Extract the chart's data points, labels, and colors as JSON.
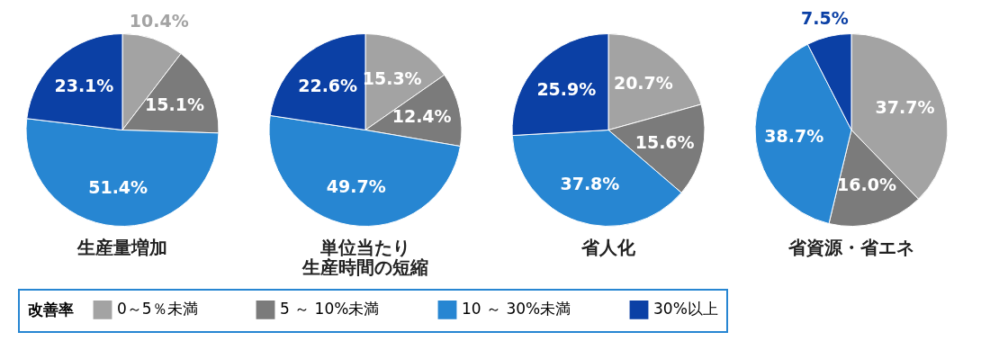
{
  "chart_data": [
    {
      "type": "pie",
      "title": "生産量増加",
      "categories": [
        "0～5％未満",
        "5 ～ 10%未満",
        "10 ～ 30%未満",
        "30%以上"
      ],
      "values": [
        10.4,
        15.1,
        51.4,
        23.1
      ],
      "value_labels": [
        "10.4%",
        "15.1%",
        "51.4%",
        "23.1%"
      ],
      "colors": [
        "#a3a3a3",
        "#7b7b7b",
        "#2786d2",
        "#0b40a5"
      ],
      "legend": "bottom",
      "legend_title": "改善率"
    },
    {
      "type": "pie",
      "title": "単位当たり",
      "subtitle": "生産時間の短縮",
      "categories": [
        null,
        null,
        null,
        null
      ],
      "values": [
        15.3,
        12.4,
        49.7,
        22.6
      ],
      "value_labels": [
        "15.3%",
        "12.4%",
        "49.7%",
        "22.6%"
      ],
      "colors": [
        "#a3a3a3",
        "#7b7b7b",
        "#2786d2",
        "#0b40a5"
      ]
    },
    {
      "type": "pie",
      "title": "省人化",
      "categories": [
        null,
        null,
        null,
        null
      ],
      "values": [
        20.7,
        15.6,
        37.8,
        25.9
      ],
      "value_labels": [
        "20.7%",
        "15.6%",
        "37.8%",
        "25.9%"
      ],
      "colors": [
        "#a3a3a3",
        "#7b7b7b",
        "#2786d2",
        "#0b40a5"
      ]
    },
    {
      "type": "pie",
      "title": "省資源・省エネ",
      "categories": [
        null,
        null,
        null,
        null
      ],
      "values": [
        37.7,
        16.0,
        38.7,
        7.5
      ],
      "value_labels": [
        "37.7%",
        "16.0%",
        "38.7%",
        "7.5%"
      ],
      "colors": [
        "#a3a3a3",
        "#7b7b7b",
        "#2786d2",
        "#0b40a5"
      ]
    }
  ]
}
